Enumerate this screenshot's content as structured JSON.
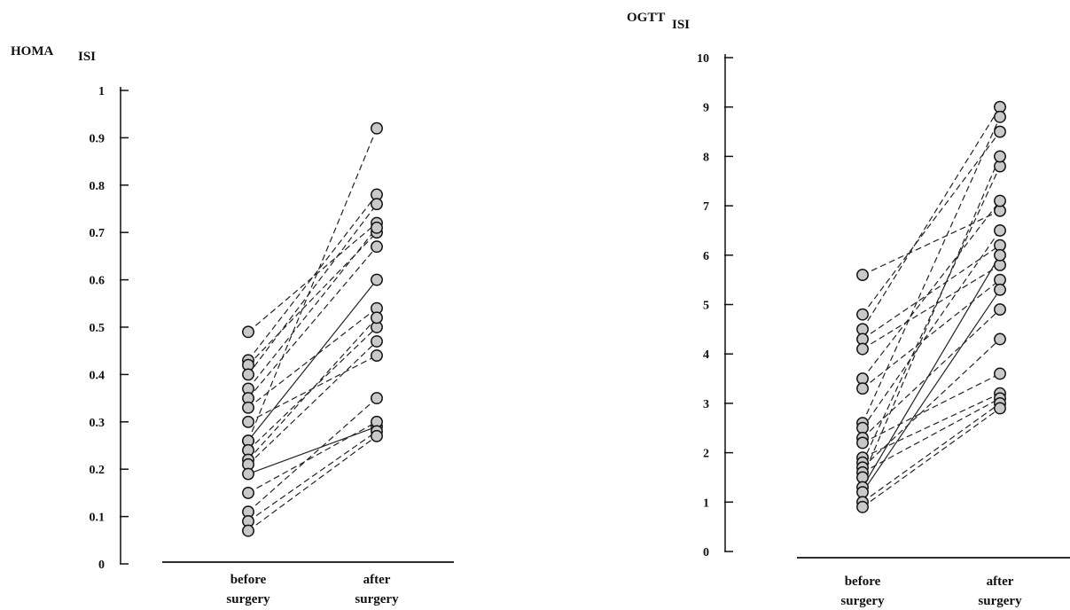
{
  "chart_data": [
    {
      "type": "line",
      "title": "HOMA",
      "title_subscript": "ISI",
      "categories": [
        "before surgery",
        "after surgery"
      ],
      "category_lines": [
        [
          "before",
          "surgery"
        ],
        [
          "after",
          "surgery"
        ]
      ],
      "ylim": [
        0,
        1
      ],
      "yticks": [
        0,
        0.1,
        0.2,
        0.3,
        0.4,
        0.5,
        0.6,
        0.7,
        0.8,
        0.9,
        1
      ],
      "ytick_labels": [
        "0",
        "0.1",
        "0.2",
        "0.3",
        "0.4",
        "0.5",
        "0.6",
        "0.7",
        "0.8",
        "0.9",
        "1"
      ],
      "series": [
        {
          "values": [
            0.49,
            0.72
          ],
          "style": "dashed"
        },
        {
          "values": [
            0.43,
            0.78
          ],
          "style": "dashed"
        },
        {
          "values": [
            0.42,
            0.7
          ],
          "style": "dashed"
        },
        {
          "values": [
            0.4,
            0.76
          ],
          "style": "dashed"
        },
        {
          "values": [
            0.37,
            0.71
          ],
          "style": "dashed"
        },
        {
          "values": [
            0.35,
            0.67
          ],
          "style": "dashed"
        },
        {
          "values": [
            0.33,
            0.54
          ],
          "style": "dashed"
        },
        {
          "values": [
            0.3,
            0.44
          ],
          "style": "dashed"
        },
        {
          "values": [
            0.26,
            0.92
          ],
          "style": "dashed"
        },
        {
          "values": [
            0.26,
            0.6
          ],
          "style": "solid"
        },
        {
          "values": [
            0.24,
            0.5
          ],
          "style": "dashed"
        },
        {
          "values": [
            0.22,
            0.52
          ],
          "style": "dashed"
        },
        {
          "values": [
            0.21,
            0.47
          ],
          "style": "dashed"
        },
        {
          "values": [
            0.19,
            0.29
          ],
          "style": "solid"
        },
        {
          "values": [
            0.15,
            0.3
          ],
          "style": "dashed"
        },
        {
          "values": [
            0.11,
            0.35
          ],
          "style": "dashed"
        },
        {
          "values": [
            0.09,
            0.28
          ],
          "style": "dashed"
        },
        {
          "values": [
            0.07,
            0.27
          ],
          "style": "dashed"
        }
      ]
    },
    {
      "type": "line",
      "title": "OGTT",
      "title_subscript": "ISI",
      "categories": [
        "before surgery",
        "after surgery"
      ],
      "category_lines": [
        [
          "before",
          "surgery"
        ],
        [
          "after",
          "surgery"
        ]
      ],
      "ylim": [
        0,
        10
      ],
      "yticks": [
        0,
        1,
        2,
        3,
        4,
        5,
        6,
        7,
        8,
        9,
        10
      ],
      "ytick_labels": [
        "0",
        "1",
        "2",
        "3",
        "4",
        "5",
        "6",
        "7",
        "8",
        "9",
        "10"
      ],
      "series": [
        {
          "values": [
            5.6,
            6.9
          ],
          "style": "dashed"
        },
        {
          "values": [
            4.8,
            8.5
          ],
          "style": "dashed"
        },
        {
          "values": [
            4.5,
            9.0
          ],
          "style": "dashed"
        },
        {
          "values": [
            4.3,
            6.2
          ],
          "style": "dashed"
        },
        {
          "values": [
            4.1,
            5.8
          ],
          "style": "dashed"
        },
        {
          "values": [
            3.5,
            7.1
          ],
          "style": "dashed"
        },
        {
          "values": [
            3.3,
            5.5
          ],
          "style": "dashed"
        },
        {
          "values": [
            2.6,
            8.8
          ],
          "style": "dashed"
        },
        {
          "values": [
            2.5,
            6.5
          ],
          "style": "dashed"
        },
        {
          "values": [
            2.3,
            4.9
          ],
          "style": "dashed"
        },
        {
          "values": [
            2.2,
            3.6
          ],
          "style": "dashed"
        },
        {
          "values": [
            1.9,
            3.2
          ],
          "style": "dashed"
        },
        {
          "values": [
            1.8,
            7.8
          ],
          "style": "dashed"
        },
        {
          "values": [
            1.7,
            4.3
          ],
          "style": "dashed"
        },
        {
          "values": [
            1.6,
            3.1
          ],
          "style": "dashed"
        },
        {
          "values": [
            1.5,
            8.0
          ],
          "style": "dashed"
        },
        {
          "values": [
            1.3,
            6.0
          ],
          "style": "solid"
        },
        {
          "values": [
            1.2,
            5.3
          ],
          "style": "solid"
        },
        {
          "values": [
            1.0,
            3.0
          ],
          "style": "dashed"
        },
        {
          "values": [
            0.9,
            2.9
          ],
          "style": "dashed"
        }
      ]
    }
  ]
}
